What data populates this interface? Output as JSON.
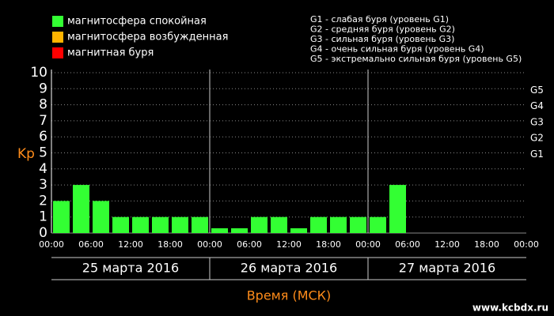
{
  "chart_data": {
    "type": "bar",
    "y_label": "Kp",
    "x_label": "Время (МСК)",
    "watermark": "www.kcbdx.ru",
    "legend": [
      {
        "name": "магнитосфера спокойная",
        "color": "#33ff33"
      },
      {
        "name": "магнитосфера возбужденная",
        "color": "#ffb400"
      },
      {
        "name": "магнитная буря",
        "color": "#ff0000"
      }
    ],
    "storm_levels": [
      "G1 - слабая буря (уровень G1)",
      "G2 - средняя буря (уровень G2)",
      "G3 - сильная буря (уровень G3)",
      "G4 - очень сильная буря (уровень G4)",
      "G5 - экстремально сильная буря (уровень G5)"
    ],
    "x": [
      0,
      3,
      6,
      9,
      12,
      15,
      18,
      21,
      24,
      27,
      30,
      33,
      36,
      39,
      42,
      45,
      48,
      51,
      54,
      57,
      60,
      63,
      66,
      69
    ],
    "series": [
      {
        "name": "Kp",
        "color": "#33ff33",
        "values": [
          2,
          3,
          2,
          1,
          1,
          1,
          1,
          1,
          0.3,
          0.3,
          1,
          1,
          0.3,
          1,
          1,
          1,
          1,
          3,
          null,
          null,
          null,
          null,
          null,
          null
        ]
      }
    ],
    "xlim": [
      0,
      72
    ],
    "xticks": [
      {
        "value": 0,
        "label": "00:00"
      },
      {
        "value": 6,
        "label": "06:00"
      },
      {
        "value": 12,
        "label": "12:00"
      },
      {
        "value": 18,
        "label": "18:00"
      },
      {
        "value": 24,
        "label": "00:00"
      },
      {
        "value": 30,
        "label": "06:00"
      },
      {
        "value": 36,
        "label": "12:00"
      },
      {
        "value": 42,
        "label": "18:00"
      },
      {
        "value": 48,
        "label": "00:00"
      },
      {
        "value": 54,
        "label": "06:00"
      },
      {
        "value": 60,
        "label": "12:00"
      },
      {
        "value": 66,
        "label": "18:00"
      },
      {
        "value": 72,
        "label": "00:00"
      }
    ],
    "days": [
      "25 марта 2016",
      "26 марта 2016",
      "27 марта 2016"
    ],
    "day_bounds": [
      24,
      48
    ],
    "ylim": [
      0,
      10
    ],
    "yticks": [
      0,
      1,
      2,
      3,
      4,
      5,
      6,
      7,
      8,
      9,
      10
    ],
    "gticks": [
      {
        "value": 5,
        "label": "G1"
      },
      {
        "value": 6,
        "label": "G2"
      },
      {
        "value": 7,
        "label": "G3"
      },
      {
        "value": 8,
        "label": "G4"
      },
      {
        "value": 9,
        "label": "G5"
      }
    ],
    "grid": true
  }
}
